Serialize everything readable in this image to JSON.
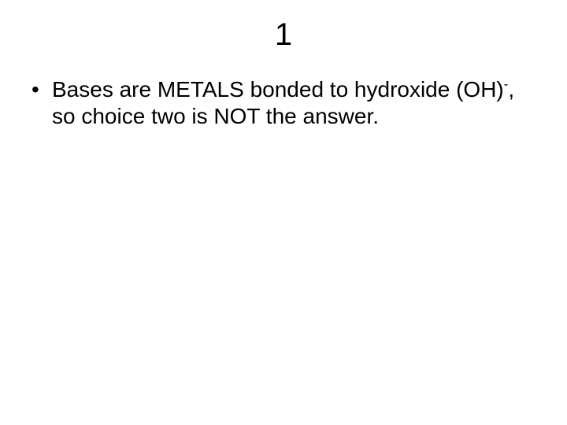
{
  "slide": {
    "title": "1",
    "title_fontsize": 40,
    "body_fontsize": 28,
    "background_color": "#ffffff",
    "text_color": "#000000",
    "bullets": [
      {
        "text_part1": "Bases are METALS bonded to hydroxide (OH)",
        "superscript": "-",
        "text_part2": ", so choice two is NOT the answer."
      }
    ]
  }
}
